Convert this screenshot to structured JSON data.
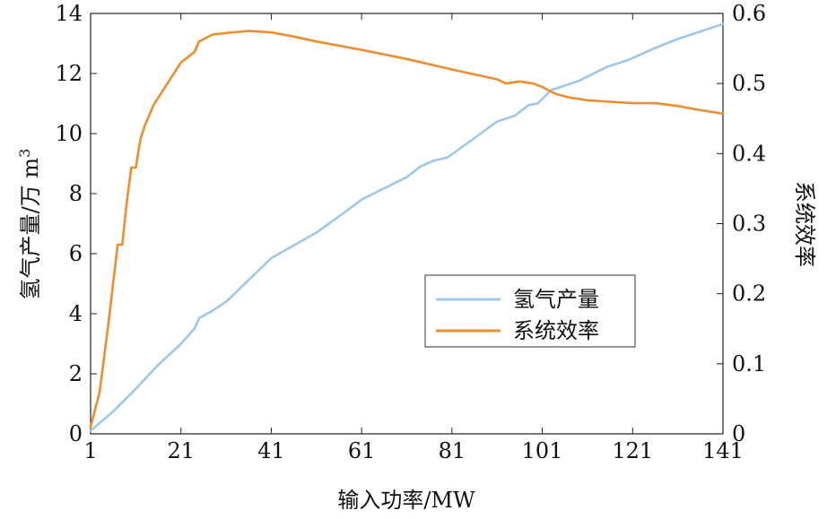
{
  "chart_data": {
    "type": "line",
    "xlabel": "输入功率/MW",
    "ylabel_left": "氢气产量/万 m3",
    "ylabel_left_sup": "3",
    "ylabel_right": "系统效率",
    "xlim": [
      1,
      141
    ],
    "ylim_left": [
      0,
      14
    ],
    "ylim_right": [
      0,
      0.6
    ],
    "x_ticks": [
      1,
      21,
      41,
      61,
      81,
      101,
      121,
      141
    ],
    "y_left_ticks": [
      0,
      2,
      4,
      6,
      8,
      10,
      12,
      14
    ],
    "y_right_ticks": [
      "0",
      "0.1",
      "0.2",
      "0.3",
      "0.4",
      "0.5",
      "0.6"
    ],
    "legend_position": "lower-right inside",
    "grid": false,
    "series": [
      {
        "name": "氢气产量",
        "axis": "left",
        "color": "#9fc8e6",
        "x": [
          1,
          6,
          11,
          16,
          21,
          24,
          25,
          28,
          31,
          41,
          51,
          57,
          61,
          71,
          74,
          77,
          80,
          86,
          91,
          95,
          98,
          100,
          103,
          105,
          109,
          111,
          115,
          120,
          126,
          131,
          136,
          141
        ],
        "y": [
          0.1,
          0.75,
          1.5,
          2.3,
          3.0,
          3.5,
          3.85,
          4.1,
          4.4,
          5.85,
          6.7,
          7.35,
          7.8,
          8.55,
          8.9,
          9.1,
          9.2,
          9.85,
          10.4,
          10.6,
          10.95,
          11.0,
          11.45,
          11.55,
          11.75,
          11.9,
          12.2,
          12.45,
          12.85,
          13.15,
          13.4,
          13.65
        ]
      },
      {
        "name": "系统效率",
        "axis": "right",
        "color": "#ea8e2f",
        "x": [
          1,
          3,
          5,
          7,
          8,
          9,
          10,
          11,
          12,
          13,
          15,
          18,
          20,
          21,
          22,
          24,
          25,
          28,
          31,
          36,
          41,
          46,
          51,
          61,
          71,
          81,
          91,
          93,
          96,
          99,
          101,
          104,
          107,
          111,
          116,
          121,
          126,
          131,
          136,
          141
        ],
        "y": [
          0.01,
          0.06,
          0.16,
          0.27,
          0.27,
          0.33,
          0.38,
          0.38,
          0.42,
          0.44,
          0.47,
          0.5,
          0.52,
          0.53,
          0.535,
          0.545,
          0.56,
          0.57,
          0.572,
          0.575,
          0.573,
          0.567,
          0.56,
          0.548,
          0.535,
          0.52,
          0.506,
          0.5,
          0.503,
          0.5,
          0.495,
          0.485,
          0.48,
          0.476,
          0.474,
          0.472,
          0.472,
          0.468,
          0.462,
          0.457
        ]
      }
    ]
  }
}
